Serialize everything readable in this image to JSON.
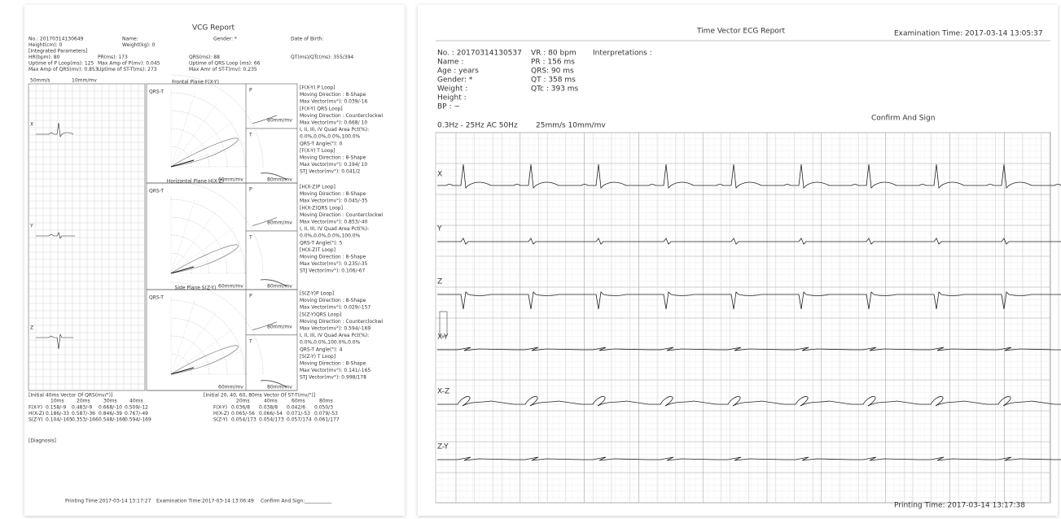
{
  "vcg_report": {
    "title": "VCG Report",
    "header": [
      [
        "No.: 20170314130649",
        "Name:",
        "Gender: *",
        "Date of Birth:"
      ],
      [
        "Height(cm): 0",
        "Weight(kg): 0"
      ],
      [
        "[Integrated Parameters]"
      ],
      [
        "HR(bpm): 80",
        "PR(ms): 173",
        "QRS(ms): 88",
        "QT(ms)/QTc(ms): 355/394"
      ],
      [
        "Uptime of P Loop(ms): 125",
        "Max Amp of P(mv): 0.045",
        "Uptime of QRS Loop (ms): 66"
      ],
      [
        "Max Amp of QRS(mv): 0.853",
        "Uptime of ST-T(ms): 273",
        "Max Amr of ST-T(mv): 0.235"
      ]
    ],
    "speed": "50mm/s",
    "gain": "10mm/mv",
    "leads": [
      "X",
      "Y",
      "Z"
    ],
    "planes": [
      {
        "name": "Frontal Plane F(X-Y)",
        "loop_label": "QRS-T",
        "p_label": "P",
        "t_label": "T",
        "loop_scale": "60mm/mv",
        "small_scale": "80mm/mv",
        "details": [
          "[F(X-Y) P Loop]",
          "Moving Direction : 8-Shape",
          "Max Vector(mv°): 0.039/-16",
          "[F(X-Y) QRS Loop]",
          "Moving Direction : Counterclockwi",
          "Max Vector(mv°): 0.668/ 10",
          "I, II, III, IV Quad Area Pct(%):",
          "0.0%,0.0%,0.0%,100.0%",
          "QRS-T Angle(°): 0",
          "[F(X-Y) T Loop]",
          "Moving Direction : 8-Shape",
          "Max Vector(mv°): 0.194/ 10",
          "STJ Vector(mv°): 0.041/2"
        ]
      },
      {
        "name": "Horizontal Plane H(X-Z)",
        "loop_label": "QRS-T",
        "p_label": "P",
        "t_label": "T",
        "loop_scale": "60mm/mv",
        "small_scale": "80mm/mv",
        "details": [
          "[H(X-Z)P Loop]",
          "Moving Direction : 8-Shape",
          "Max Vector(mv°): 0.045/-35",
          "[H(X-Z)QRS Loop]",
          "Moving Direction : Counterclockwi",
          "Max Vector(mv°): 0.853/-40",
          "I, II, III, IV Quad Area Pct(%):",
          "0.0%,0.0%,0.0%,100.0%",
          "QRS-T Angle(°): 5",
          "[H(X-Z)T Loop]",
          "Moving Direction : 8-Shape",
          "Max Vector(mv°): 0.235/-35",
          "STJ Vector(mv°): 0.106/-67"
        ]
      },
      {
        "name": "Side Plane S(Z-Y)",
        "loop_label": "QRS-T",
        "p_label": "P",
        "t_label": "T",
        "loop_scale": "60mm/mv",
        "small_scale": "80mm/mv",
        "details": [
          "[S(Z-Y)P Loop]",
          "Moving Direction : 8-Shape",
          "Max Vector(mv°): 0.029/-157",
          "[S(Z-Y)QRS Loop]",
          "Moving Direction : Counterclockwi",
          "Max Vector(mv°): 0.594/-169",
          "I, II, III, IV Quad Area Pct(%):",
          "0.0%,0.0%,100.0%,0.0%",
          "QRS-T Angle(°): 4",
          "[S(Z-Y) T Loop]",
          "Moving Direction : 8-Shape",
          "Max Vector(mv°): 0.141/-165",
          "STJ Vector(mv°): 0.998/178"
        ]
      }
    ],
    "table_qrs": {
      "title": "[Initial 40ms Vector Of QRS(mv/°)]",
      "columns": [
        "10ms",
        "20ms",
        "30ms",
        "40ms"
      ],
      "rows": [
        [
          "F(X-Y)",
          "0.158/-9",
          "0.483/-9",
          "0.668/-10",
          "0.509/-12"
        ],
        [
          "H(X-Z)",
          "0.186/-33",
          "0.587/-36",
          "0.846/-39",
          "0.767/-49"
        ],
        [
          "S(Z-Y)",
          "0.104/-165",
          "0.353/-166",
          "0.548/-166",
          "0.594/-169"
        ]
      ]
    },
    "table_stt": {
      "title": "[Initial 20, 40, 60, 80ms Vector Of ST-T(mv/°)]",
      "columns": [
        "20ms",
        "40ms",
        "60ms",
        "80ms"
      ],
      "rows": [
        [
          "F(X-Y)",
          "0.036/8",
          "0.038/8",
          "0.042/6",
          "0.050/3"
        ],
        [
          "H(X-Z)",
          "0.065/-56",
          "0.066/-54",
          "0.071/-53",
          "0.079/-53"
        ],
        [
          "S(Z-Y)",
          "0.054/173",
          "0.054/173",
          "0.057/174",
          "0.061/177"
        ]
      ]
    },
    "diagnosis": "[Diagnosis]",
    "footer": [
      "Printing Time:2017-03-14 13:17:27",
      "Examination Time:2017-03-14 13:06:49",
      "Confirm And Sign:___________"
    ]
  },
  "tve_report": {
    "title": "Time Vector ECG Report",
    "exam_time": "Examination Time: 2017-03-14 13:05:37",
    "patient": [
      "No.   : 20170314130537",
      "Name :",
      "Age   : years",
      "Gender: *",
      "Weight :",
      "Height :",
      "BP     :  ~"
    ],
    "filter": "0.3Hz - 25Hz AC 50Hz",
    "measures": [
      "VR  : 80 bpm",
      "PR  : 156 ms",
      "QRS: 90 ms",
      "QT  : 358 ms",
      "QTc : 393 ms"
    ],
    "scale": "25mm/s 10mm/mv",
    "interpretations": "Interpretations :",
    "confirm": "Confirm And Sign",
    "leads": [
      "X",
      "Y",
      "Z",
      "X-Y",
      "X-Z",
      "Z-Y"
    ],
    "footer": "Printing Time: 2017-03-14 13:17:38"
  }
}
